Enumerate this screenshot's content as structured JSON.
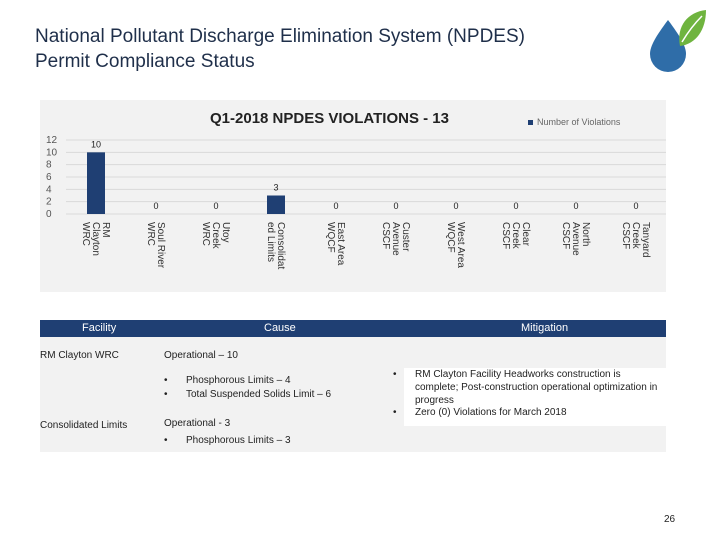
{
  "slide": {
    "title": "National Pollutant Discharge Elimination System (NPDES) Permit Compliance Status",
    "page_number": "26"
  },
  "chart_data": {
    "type": "bar",
    "title": "Q1-2018 NPDES VIOLATIONS - 13",
    "legend": "Number of Violations",
    "legend_position": "top-right",
    "ylim": [
      0,
      12
    ],
    "yticks": [
      "12",
      "10",
      "8",
      "6",
      "4",
      "2",
      "0"
    ],
    "grid": true,
    "categories": [
      "RM Clayton WRC",
      "Soul River WRC",
      "Utoy Creek WRC",
      "Consolidated Limits",
      "East Area WQCF",
      "Custer Avenue CSCF",
      "West Area WQCF",
      "Clear Creek CSCF",
      "North Avenue CSCF",
      "Tanyard Creek CSCF"
    ],
    "category_lines": [
      [
        "RM",
        "Clayton",
        "WRC"
      ],
      [
        "Soul River",
        "WRC"
      ],
      [
        "Utoy",
        "Creek",
        "WRC"
      ],
      [
        "Consolidat",
        "ed Limits"
      ],
      [
        "East Area",
        "WQCF"
      ],
      [
        "Custer",
        "Avenue",
        "CSCF"
      ],
      [
        "West Area",
        "WQCF"
      ],
      [
        "Clear",
        "Creek",
        "CSCF"
      ],
      [
        "North",
        "Avenue",
        "CSCF"
      ],
      [
        "Tanyard",
        "Creek",
        "CSCF"
      ]
    ],
    "series": [
      {
        "name": "Number of Violations",
        "values": [
          10,
          0,
          0,
          3,
          0,
          0,
          0,
          0,
          0,
          0
        ]
      }
    ],
    "bar_color": "#1f3f73"
  },
  "table": {
    "headers": {
      "facility": "Facility",
      "cause": "Cause",
      "mitigation": "Mitigation"
    },
    "rows": [
      {
        "facility": "RM Clayton WRC",
        "cause_heading": "Operational – 10",
        "cause_items": [
          "Phosphorous Limits – 4",
          "Total Suspended Solids Limit – 6"
        ]
      },
      {
        "facility": "Consolidated Limits",
        "cause_heading": "Operational - 3",
        "cause_items": [
          "Phosphorous Limits – 3"
        ]
      }
    ],
    "mitigation": [
      "RM Clayton Facility Headworks construction is complete; Post-construction operational optimization in progress",
      "Zero (0) Violations for March 2018"
    ]
  },
  "colors": {
    "header_bg": "#1f3f73",
    "panel_bg": "#f2f2f2",
    "logo_blue": "#2f6da8",
    "logo_green": "#6fb43f"
  }
}
